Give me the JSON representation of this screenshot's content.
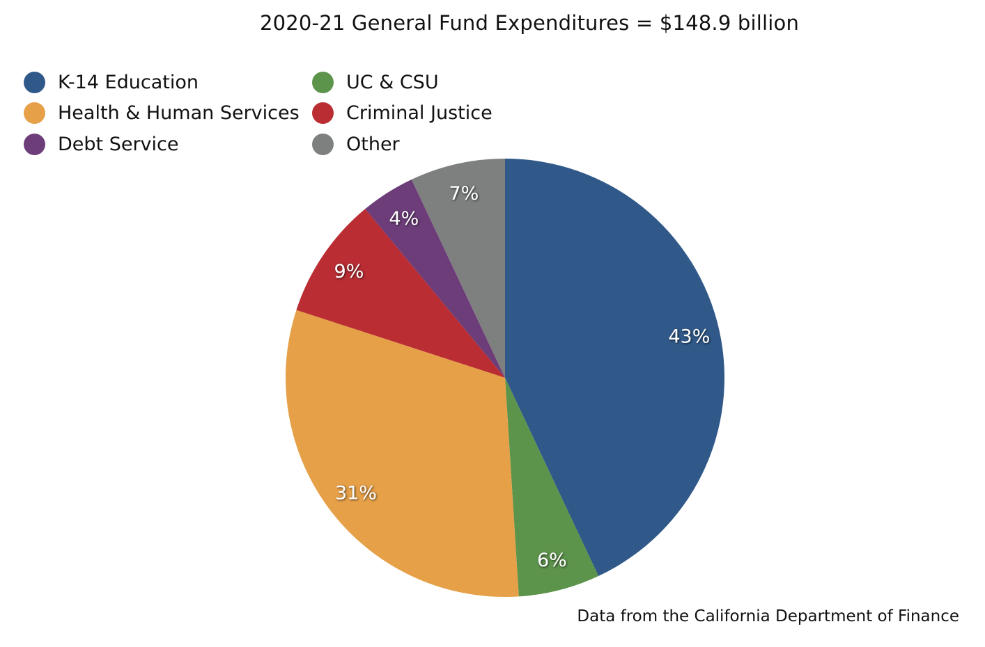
{
  "chart_data": {
    "type": "pie",
    "title": "2020-21 General Fund Expenditures = $148.9 billion",
    "slices": [
      {
        "label": "K-14 Education",
        "value": 43,
        "display": "43%",
        "color": "#30598a"
      },
      {
        "label": "UC & CSU",
        "value": 6,
        "display": "6%",
        "color": "#5d944c"
      },
      {
        "label": "Health & Human Services",
        "value": 31,
        "display": "31%",
        "color": "#e6a048"
      },
      {
        "label": "Criminal Justice",
        "value": 9,
        "display": "9%",
        "color": "#b92d33"
      },
      {
        "label": "Debt Service",
        "value": 4,
        "display": "4%",
        "color": "#6d3d7a"
      },
      {
        "label": "Other",
        "value": 7,
        "display": "7%",
        "color": "#7e7f7f"
      }
    ],
    "legend": {
      "placement": "top-left",
      "entries": [
        {
          "label": "K-14 Education",
          "color": "#30598a"
        },
        {
          "label": "UC & CSU",
          "color": "#5d944c"
        },
        {
          "label": "Health & Human Services",
          "color": "#e6a048"
        },
        {
          "label": "Criminal Justice",
          "color": "#b92d33"
        },
        {
          "label": "Debt Service",
          "color": "#6d3d7a"
        },
        {
          "label": "Other",
          "color": "#7e7f7f"
        }
      ]
    },
    "source_note": "Data from the California Department of Finance"
  }
}
